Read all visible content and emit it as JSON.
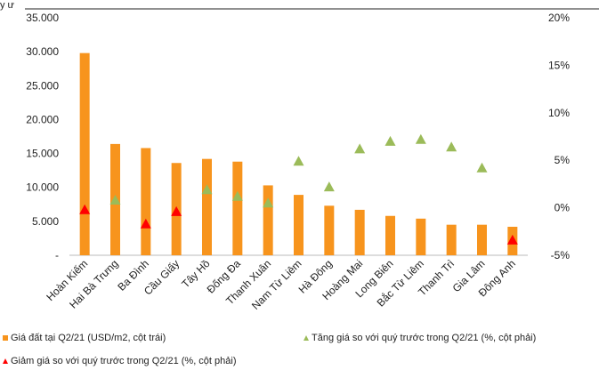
{
  "chart_data": {
    "type": "bar",
    "categories": [
      "Hoàn Kiếm",
      "Hai Bà Trưng",
      "Ba Đình",
      "Cầu Giấy",
      "Tây Hồ",
      "Đống Đa",
      "Thanh Xuân",
      "Nam Từ Liêm",
      "Hà Đông",
      "Hoàng Mai",
      "Long Biên",
      "Bắc Từ Liêm",
      "Thanh Trì",
      "Gia Lâm",
      "Đông Anh"
    ],
    "series": [
      {
        "name": "Giá đất tại Q2/21 (USD/m2, cột trái)",
        "axis": "left",
        "type": "bar",
        "color": "#F7941D",
        "values": [
          29800,
          16400,
          15800,
          13600,
          14200,
          13800,
          10300,
          8900,
          7300,
          6700,
          5800,
          5400,
          4500,
          4500,
          4200
        ]
      },
      {
        "name": "Tăng giá so với quý trước trong Q2/21 (%, cột phải)",
        "axis": "right",
        "type": "marker-up",
        "color": "#9BBB59",
        "values": [
          null,
          0.8,
          null,
          null,
          1.9,
          1.2,
          0.5,
          4.9,
          2.2,
          6.2,
          7.0,
          7.2,
          6.4,
          4.2,
          null
        ]
      },
      {
        "name": "Giảm giá so với quý trước trong Q2/21 (%, cột phải)",
        "axis": "right",
        "type": "marker-down",
        "color": "#FF0000",
        "values": [
          -0.2,
          null,
          -1.7,
          -0.4,
          null,
          null,
          null,
          null,
          null,
          null,
          null,
          null,
          null,
          null,
          -3.4
        ]
      }
    ],
    "y_left": {
      "min": 0,
      "max": 35000,
      "step": 5000,
      "ticks": [
        "-",
        "5.000",
        "10.000",
        "15.000",
        "20.000",
        "25.000",
        "30.000",
        "35.000"
      ]
    },
    "y_right": {
      "min": -5,
      "max": 20,
      "step": 5,
      "ticks": [
        "-5%",
        "0%",
        "5%",
        "10%",
        "15%",
        "20%"
      ]
    },
    "grid": false,
    "legend_position": "bottom"
  },
  "top_fragment": "y ư",
  "legend": {
    "bar_label": "Giá đất tại Q2/21 (USD/m2, cột trái)",
    "up_label": "Tăng giá so với quý trước trong Q2/21 (%, cột phải)",
    "down_label": "Giảm giá so với quý trước trong Q2/21 (%, cột phải)"
  }
}
